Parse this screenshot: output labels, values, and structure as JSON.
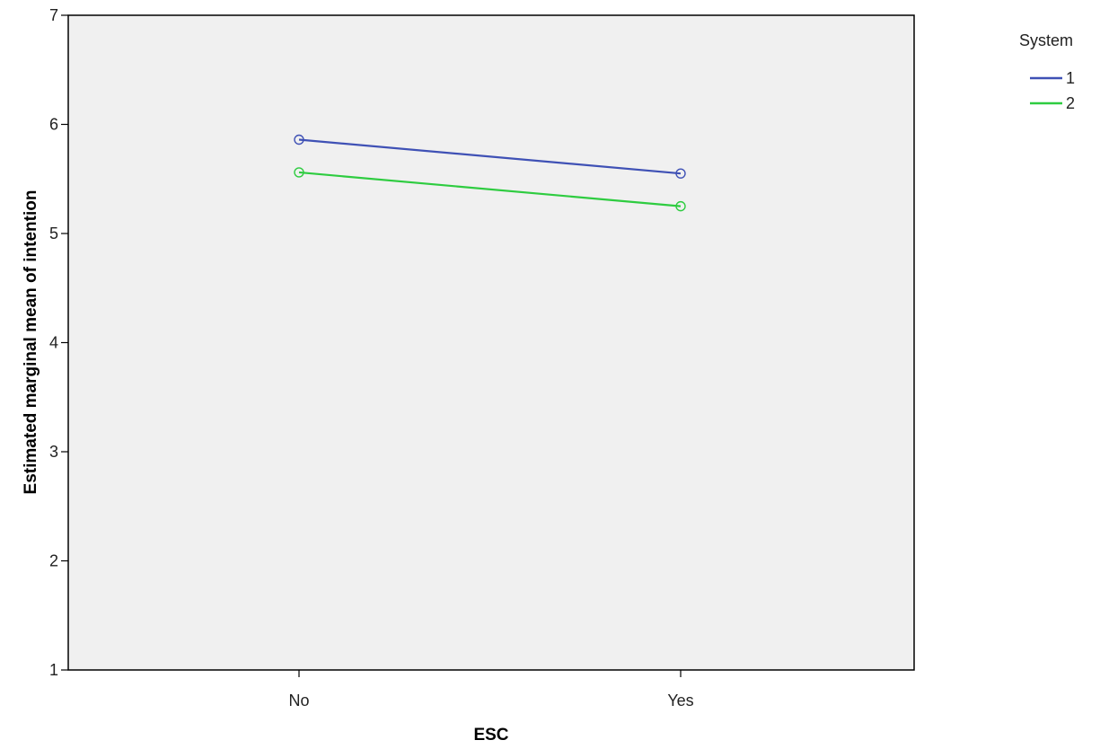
{
  "chart_data": {
    "type": "line",
    "title": "",
    "xlabel": "ESC",
    "ylabel": "Estimated marginal mean of intention",
    "categories": [
      "No",
      "Yes"
    ],
    "ylim": [
      1,
      7
    ],
    "yticks": [
      1,
      2,
      3,
      4,
      5,
      6,
      7
    ],
    "grid": false,
    "marker": "open-circle",
    "plot_background": "#f0f0f0",
    "legend": {
      "title": "System",
      "placement": "top-right-outside"
    },
    "series": [
      {
        "name": "1",
        "color": "#3f51b5",
        "values": [
          5.86,
          5.55
        ]
      },
      {
        "name": "2",
        "color": "#2ecc40",
        "values": [
          5.56,
          5.25
        ]
      }
    ]
  }
}
